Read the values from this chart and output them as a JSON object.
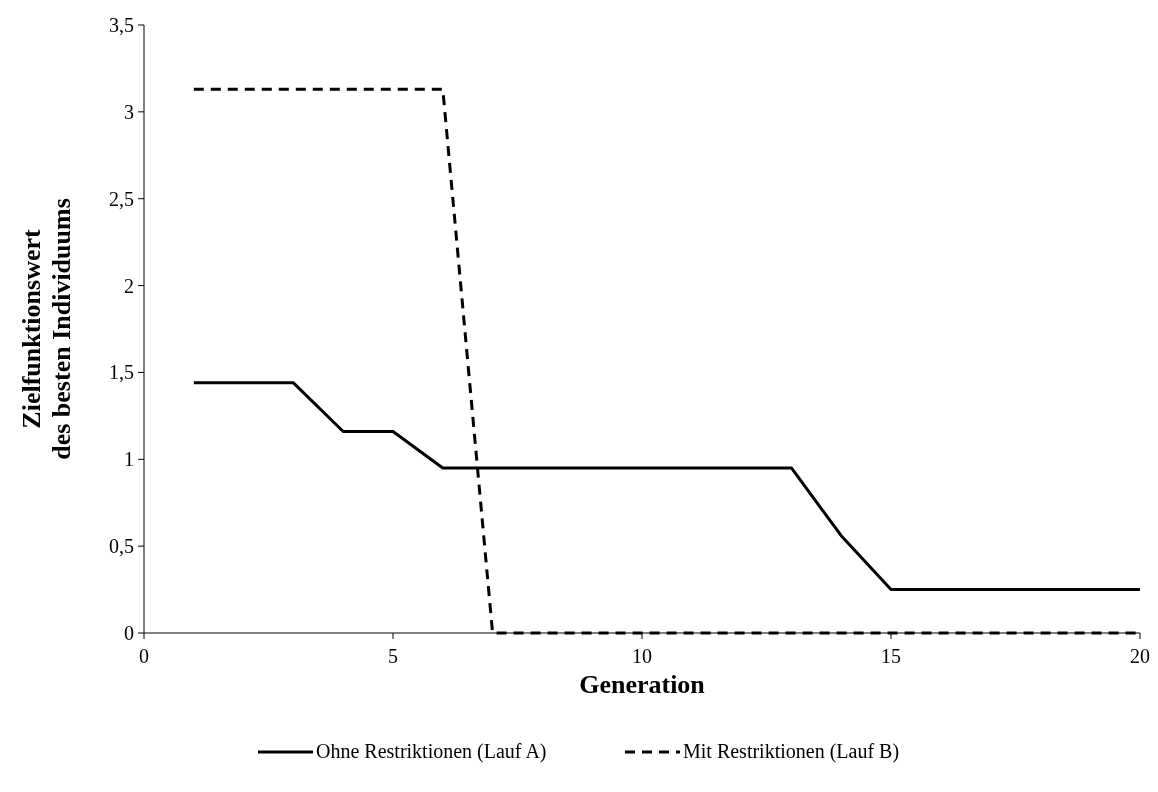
{
  "chart_data": {
    "type": "line",
    "xlabel": "Generation",
    "ylabel": "Zielfunktionswert\ndes besten Individuums",
    "x": [
      1,
      2,
      3,
      4,
      5,
      6,
      7,
      8,
      9,
      10,
      11,
      12,
      13,
      14,
      15,
      16,
      17,
      18,
      19,
      20
    ],
    "series": [
      {
        "name": "Ohne Restriktionen (Lauf A)",
        "color": "#000000",
        "line_style": "solid",
        "values": [
          1.44,
          1.44,
          1.44,
          1.16,
          1.16,
          0.95,
          0.95,
          0.95,
          0.95,
          0.95,
          0.95,
          0.95,
          0.95,
          0.56,
          0.25,
          0.25,
          0.25,
          0.25,
          0.25,
          0.25
        ]
      },
      {
        "name": "Mit Restriktionen (Lauf B)",
        "color": "#000000",
        "line_style": "dashed",
        "values": [
          3.13,
          3.13,
          3.13,
          3.13,
          3.13,
          3.13,
          0,
          0,
          0,
          0,
          0,
          0,
          0,
          0,
          0,
          0,
          0,
          0,
          0,
          0
        ]
      }
    ],
    "xlim": [
      0,
      20
    ],
    "xticks": [
      0,
      5,
      10,
      15,
      20
    ],
    "ylim": [
      0,
      3.5
    ],
    "yticks": [
      0,
      {
        "value": 0.5,
        "label": "0,5"
      },
      1,
      {
        "value": 1.5,
        "label": "1,5"
      },
      2,
      {
        "value": 2.5,
        "label": "2,5"
      },
      3,
      {
        "value": 3.5,
        "label": "3,5"
      }
    ],
    "grid": false,
    "legend": "bottom"
  }
}
